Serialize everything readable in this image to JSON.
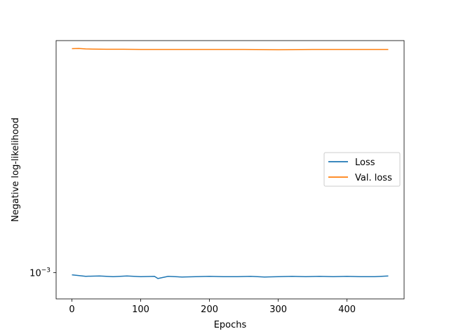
{
  "chart_data": {
    "type": "line",
    "title": "",
    "xlabel": "Epochs",
    "ylabel": "Negative log-likelihood",
    "xlim": [
      -23,
      483
    ],
    "ylim": [
      0.00093,
      0.0019
    ],
    "yscale": "log",
    "x_ticks": [
      0,
      100,
      200,
      300,
      400
    ],
    "y_ticks": [
      0.001
    ],
    "y_tick_labels": [
      "10",
      "−3"
    ],
    "grid": false,
    "legend_position": "center-right",
    "series": [
      {
        "name": "Loss",
        "color": "#1f77b4",
        "x": [
          0,
          20,
          40,
          60,
          80,
          100,
          120,
          125,
          140,
          160,
          180,
          200,
          220,
          240,
          260,
          280,
          300,
          320,
          340,
          360,
          380,
          400,
          420,
          440,
          460
        ],
        "y": [
          0.000994,
          0.00099,
          0.000991,
          0.000989,
          0.000991,
          0.000989,
          0.00099,
          0.000984,
          0.00099,
          0.000988,
          0.000989,
          0.00099,
          0.000989,
          0.000989,
          0.00099,
          0.000988,
          0.000989,
          0.00099,
          0.000989,
          0.00099,
          0.000989,
          0.00099,
          0.000989,
          0.000989,
          0.000991
        ]
      },
      {
        "name": "Val. loss",
        "color": "#ff7f0e",
        "x": [
          0,
          10,
          20,
          30,
          50,
          75,
          100,
          150,
          200,
          250,
          300,
          350,
          400,
          450,
          460
        ],
        "y": [
          0.001858,
          0.001859,
          0.001857,
          0.001856,
          0.001855,
          0.001855,
          0.001854,
          0.001854,
          0.001854,
          0.001854,
          0.001853,
          0.001854,
          0.001854,
          0.001854,
          0.001854
        ]
      }
    ]
  }
}
